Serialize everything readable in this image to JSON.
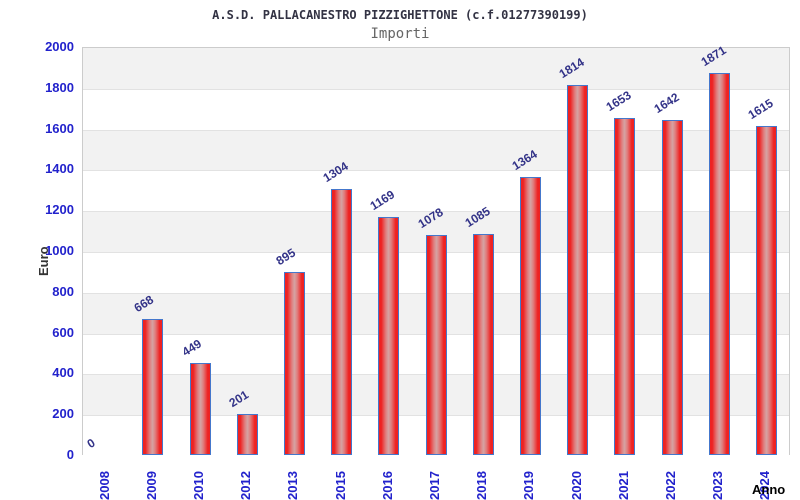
{
  "header": {
    "title": "A.S.D. PALLACANESTRO PIZZIGHETTONE (c.f.01277390199)",
    "subtitle": "Importi"
  },
  "chart_data": {
    "type": "bar",
    "title": "A.S.D. PALLACANESTRO PIZZIGHETTONE (c.f.01277390199)",
    "subtitle": "Importi",
    "xlabel": "Anno",
    "ylabel": "Euro",
    "categories": [
      "2008",
      "2009",
      "2010",
      "2012",
      "2013",
      "2015",
      "2016",
      "2017",
      "2018",
      "2019",
      "2020",
      "2021",
      "2022",
      "2023",
      "2024"
    ],
    "values": [
      0,
      668,
      449,
      201,
      895,
      1304,
      1169,
      1078,
      1085,
      1364,
      1814,
      1653,
      1642,
      1871,
      1615
    ],
    "ylim": [
      0,
      2000
    ],
    "ytick_step": 200,
    "yticks": [
      "0",
      "200",
      "400",
      "600",
      "800",
      "1000",
      "1200",
      "1400",
      "1600",
      "1800",
      "2000"
    ],
    "grid": "horizontal-bands",
    "legend": "none",
    "colors": {
      "bar_fill_edge": "#ee2222",
      "bar_fill_center": "#d5a4a4",
      "bar_border": "#4477cc",
      "axis_tick_label": "#2222cc",
      "value_label": "#333388",
      "band_gray": "#f2f2f2",
      "band_white": "#ffffff",
      "plot_border": "#cccccc",
      "title_color": "#333344",
      "subtitle_color": "#666666"
    }
  }
}
